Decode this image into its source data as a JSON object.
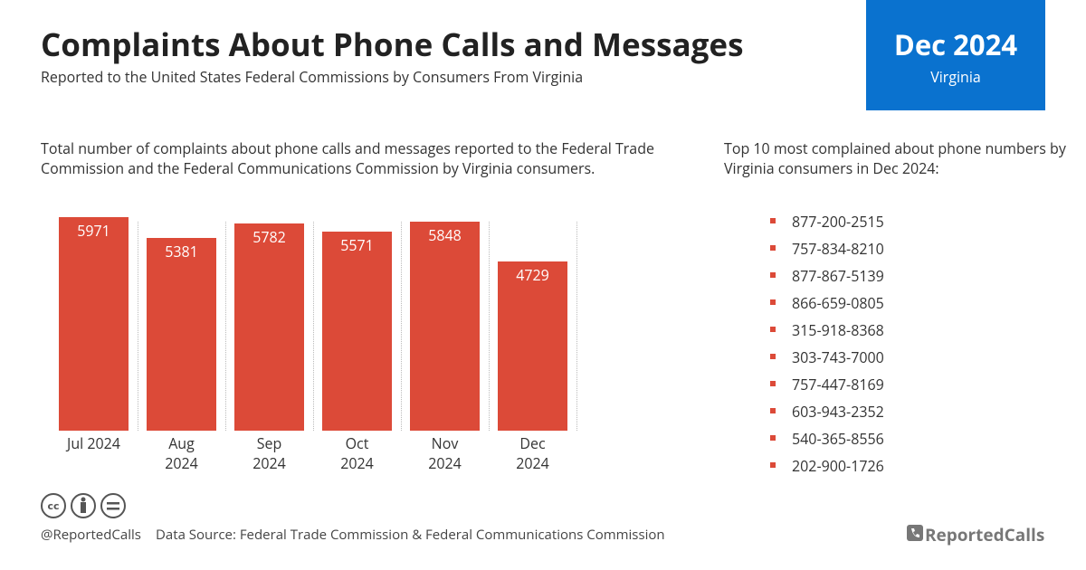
{
  "header": {
    "title": "Complaints About Phone Calls and Messages",
    "subtitle": "Reported to the United States Federal Commissions by Consumers From Virginia",
    "badge_title": "Dec 2024",
    "badge_subtitle": "Virginia"
  },
  "chart_data": {
    "type": "bar",
    "title": "Total number of complaints about phone calls and messages reported to the Federal Trade Commission and the Federal Communications Commission by Virginia consumers.",
    "categories": [
      "Jul 2024",
      "Aug 2024",
      "Sep 2024",
      "Oct 2024",
      "Nov 2024",
      "Dec 2024"
    ],
    "values": [
      5971,
      5381,
      5782,
      5571,
      5848,
      4729
    ],
    "color": "#dc4a38"
  },
  "top_numbers": {
    "title": "Top 10 most complained about phone numbers by Virginia consumers in Dec 2024:",
    "items": [
      "877-200-2515",
      "757-834-8210",
      "877-867-5139",
      "866-659-0805",
      "315-918-8368",
      "303-743-7000",
      "757-447-8169",
      "603-943-2352",
      "540-365-8556",
      "202-900-1726"
    ]
  },
  "footer": {
    "handle": "@ReportedCalls",
    "source": "Data Source: Federal Trade Commission & Federal Communications Commission",
    "brand": "ReportedCalls"
  }
}
